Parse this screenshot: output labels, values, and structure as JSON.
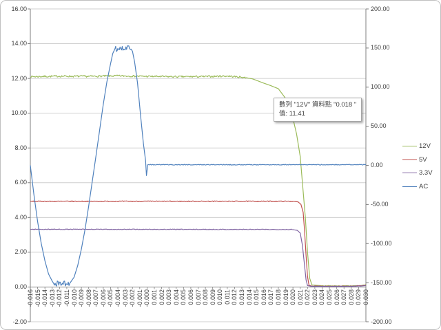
{
  "chart_data": {
    "type": "line",
    "title": "",
    "grid": true,
    "x_axis": {
      "min": -0.016,
      "max": 0.03,
      "step": 0.001,
      "labels": [
        "-0.016",
        "-0.015",
        "-0.014",
        "-0.013",
        "-0.012",
        "-0.011",
        "-0.010",
        "-0.009",
        "-0.008",
        "-0.007",
        "-0.006",
        "-0.005",
        "-0.004",
        "-0.003",
        "-0.002",
        "-0.001",
        "-0.000",
        "0.001",
        "0.002",
        "0.003",
        "0.004",
        "0.005",
        "0.006",
        "0.007",
        "0.008",
        "0.009",
        "0.010",
        "0.011",
        "0.012",
        "0.013",
        "0.014",
        "0.015",
        "0.016",
        "0.017",
        "0.018",
        "0.019",
        "0.020",
        "0.021",
        "0.022",
        "0.023",
        "0.024",
        "0.025",
        "0.026",
        "0.027",
        "0.028",
        "0.029",
        "0.030"
      ]
    },
    "y_axis_left": {
      "min": -2,
      "max": 16,
      "step": 2,
      "tick_labels": [
        "16.00",
        "14.00",
        "12.00",
        "10.00",
        "8.00",
        "6.00",
        "4.00",
        "2.00",
        "0.00",
        "-2.00"
      ]
    },
    "y_axis_right": {
      "min": -200,
      "max": 200,
      "step": 50,
      "tick_labels": [
        "200.00",
        "150.00",
        "100.00",
        "50.00",
        "0.00",
        "-50.00",
        "-100.00",
        "-150.00",
        "-200.00"
      ]
    },
    "legend": {
      "position": "right",
      "entries": [
        {
          "label": "12V",
          "color": "#9BBB59"
        },
        {
          "label": "5V",
          "color": "#C0504D"
        },
        {
          "label": "3.3V",
          "color": "#8064A2"
        },
        {
          "label": "AC",
          "color": "#4F81BD"
        }
      ]
    },
    "series": [
      {
        "name": "12V",
        "axis": "left",
        "color": "#9BBB59",
        "points": [
          [
            -0.016,
            12.1,
            0.05
          ],
          [
            -0.012,
            12.13,
            0.05
          ],
          [
            -0.008,
            12.12,
            0.05
          ],
          [
            -0.004,
            12.15,
            0.05
          ],
          [
            0.0,
            12.12,
            0.05
          ],
          [
            0.004,
            12.1,
            0.05
          ],
          [
            0.008,
            12.11,
            0.05
          ],
          [
            0.011,
            12.14,
            0.05
          ],
          [
            0.0135,
            12.05,
            0
          ],
          [
            0.0145,
            11.97,
            0
          ],
          [
            0.016,
            11.73,
            0
          ],
          [
            0.017,
            11.58,
            0
          ],
          [
            0.018,
            11.41,
            0
          ],
          [
            0.019,
            10.85,
            0
          ],
          [
            0.02,
            9.7,
            0
          ],
          [
            0.0205,
            8.8,
            0
          ],
          [
            0.021,
            7.5,
            0
          ],
          [
            0.0213,
            6.0,
            0
          ],
          [
            0.0217,
            4.0,
            0
          ],
          [
            0.022,
            2.0,
            0
          ],
          [
            0.0223,
            0.5,
            0
          ],
          [
            0.0226,
            0.12,
            0
          ],
          [
            0.024,
            0.07,
            0.02
          ],
          [
            0.027,
            0.06,
            0.02
          ],
          [
            0.0293,
            0.08,
            0.02
          ],
          [
            0.03,
            0.13,
            0
          ]
        ]
      },
      {
        "name": "5V",
        "axis": "left",
        "color": "#C0504D",
        "points": [
          [
            -0.016,
            4.93,
            0.025
          ],
          [
            0.02,
            4.93,
            0
          ],
          [
            0.0207,
            4.9,
            0
          ],
          [
            0.0211,
            4.75,
            0
          ],
          [
            0.0214,
            4.3,
            0
          ],
          [
            0.0216,
            3.2,
            0
          ],
          [
            0.0218,
            1.8,
            0
          ],
          [
            0.022,
            0.6,
            0
          ],
          [
            0.0222,
            0.1,
            0
          ],
          [
            0.0226,
            0.05,
            0.015
          ],
          [
            0.028,
            0.04,
            0.015
          ],
          [
            0.0295,
            0.08,
            0
          ],
          [
            0.03,
            0.1,
            0
          ]
        ]
      },
      {
        "name": "3.3V",
        "axis": "left",
        "color": "#8064A2",
        "points": [
          [
            -0.016,
            3.32,
            0.02
          ],
          [
            0.0198,
            3.31,
            0
          ],
          [
            0.0206,
            3.26,
            0
          ],
          [
            0.021,
            3.1,
            0
          ],
          [
            0.0213,
            2.4,
            0
          ],
          [
            0.0216,
            1.2,
            0
          ],
          [
            0.0218,
            0.4,
            0
          ],
          [
            0.022,
            0.08,
            0
          ],
          [
            0.0225,
            0.04,
            0.012
          ],
          [
            0.028,
            0.04,
            0.012
          ],
          [
            0.0295,
            0.06,
            0
          ],
          [
            0.03,
            0.08,
            0
          ]
        ]
      },
      {
        "name": "AC",
        "axis": "right",
        "color": "#4F81BD",
        "points": [
          [
            -0.016,
            0,
            0
          ],
          [
            -0.0155,
            -38,
            0
          ],
          [
            -0.015,
            -72,
            0
          ],
          [
            -0.0145,
            -100,
            0
          ],
          [
            -0.014,
            -122,
            0
          ],
          [
            -0.0135,
            -139,
            0
          ],
          [
            -0.013,
            -148,
            0
          ],
          [
            -0.0128,
            -151,
            3.5
          ],
          [
            -0.0106,
            -151,
            0
          ],
          [
            -0.01,
            -143,
            0
          ],
          [
            -0.0095,
            -128,
            0
          ],
          [
            -0.009,
            -107,
            0
          ],
          [
            -0.0085,
            -82,
            0
          ],
          [
            -0.008,
            -52,
            0
          ],
          [
            -0.0075,
            -20,
            0
          ],
          [
            -0.007,
            12,
            0
          ],
          [
            -0.0065,
            45,
            0
          ],
          [
            -0.006,
            78,
            0
          ],
          [
            -0.0055,
            107,
            0
          ],
          [
            -0.005,
            130,
            0
          ],
          [
            -0.0047,
            143,
            0
          ],
          [
            -0.0044,
            149,
            3.5
          ],
          [
            -0.0023,
            150,
            0
          ],
          [
            -0.002,
            146,
            0
          ],
          [
            -0.0017,
            132,
            0
          ],
          [
            -0.0013,
            105,
            0
          ],
          [
            -0.0009,
            65,
            0
          ],
          [
            -0.0005,
            28,
            0
          ],
          [
            -0.0002,
            6,
            0
          ],
          [
            -8e-05,
            -13,
            0
          ],
          [
            0.0001,
            0.8,
            0.45
          ],
          [
            0.03,
            0.8,
            0
          ]
        ]
      }
    ]
  },
  "tooltip": {
    "line1": "數列 \"12V\" 資料點 \"0.018 \"",
    "line2": "值: 11.41"
  },
  "style_colors": {
    "gridline": "#CFCFCF",
    "axis_line": "#7F7F7F",
    "label_text": "#404040",
    "tooltip_border": "#A6A6A6",
    "background": "#FFFFFF"
  }
}
